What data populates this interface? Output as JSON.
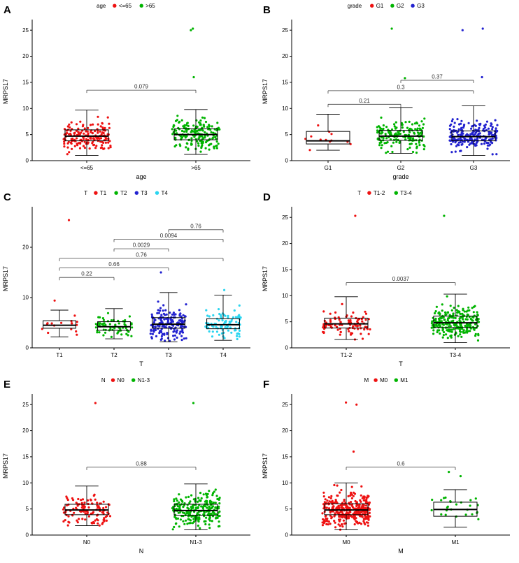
{
  "palette": {
    "red": "#ee1111",
    "green": "#00b400",
    "blue": "#2222d0",
    "cyan": "#2bd5f0",
    "axis": "#000000",
    "bracket": "#444444"
  },
  "ylabel_all": "MRPS17",
  "chart_data": [
    {
      "panel": "A",
      "type": "boxplot-jitter",
      "legend_title": "age",
      "xlabel": "age",
      "ylabel": "MRPS17",
      "ylim": [
        0,
        26.5
      ],
      "yticks": [
        0,
        5,
        10,
        15,
        20,
        25
      ],
      "groups": [
        {
          "label": "<=65",
          "color": "#ee1111",
          "n": 170,
          "whisker_low": 1.0,
          "q1": 3.8,
          "median": 4.7,
          "q3": 5.9,
          "whisker_high": 9.7,
          "outliers": []
        },
        {
          "label": ">65",
          "color": "#00b400",
          "n": 190,
          "whisker_low": 1.2,
          "q1": 4.0,
          "median": 5.0,
          "q3": 6.1,
          "whisker_high": 9.8,
          "outliers": [
            16,
            25,
            25.3
          ]
        }
      ],
      "comparisons": [
        {
          "group1": "<=65",
          "group2": ">65",
          "p": "0.079",
          "y": 13.5
        }
      ]
    },
    {
      "panel": "B",
      "type": "boxplot-jitter",
      "legend_title": "grade",
      "xlabel": "grade",
      "ylabel": "MRPS17",
      "ylim": [
        0,
        26.5
      ],
      "yticks": [
        0,
        5,
        10,
        15,
        20,
        25
      ],
      "groups": [
        {
          "label": "G1",
          "color": "#ee1111",
          "n": 12,
          "whisker_low": 2.0,
          "q1": 3.2,
          "median": 3.8,
          "q3": 5.6,
          "whisker_high": 8.9,
          "outliers": []
        },
        {
          "label": "G2",
          "color": "#00b400",
          "n": 160,
          "whisker_low": 1.4,
          "q1": 3.9,
          "median": 4.7,
          "q3": 5.8,
          "whisker_high": 10.2,
          "outliers": [
            15.8,
            25.3
          ]
        },
        {
          "label": "G3",
          "color": "#2222d0",
          "n": 210,
          "whisker_low": 1.0,
          "q1": 3.8,
          "median": 4.6,
          "q3": 5.7,
          "whisker_high": 10.5,
          "outliers": [
            16,
            25,
            25.3
          ]
        }
      ],
      "comparisons": [
        {
          "group1": "G1",
          "group2": "G2",
          "p": "0.21",
          "y": 10.8
        },
        {
          "group1": "G1",
          "group2": "G3",
          "p": "0.3",
          "y": 13.4
        },
        {
          "group1": "G2",
          "group2": "G3",
          "p": "0.37",
          "y": 15.4
        }
      ]
    },
    {
      "panel": "C",
      "type": "boxplot-jitter",
      "legend_title": "T",
      "xlabel": "T",
      "ylabel": "MRPS17",
      "ylim": [
        0,
        27.5
      ],
      "yticks": [
        0,
        10,
        20
      ],
      "groups": [
        {
          "label": "T1",
          "color": "#ee1111",
          "n": 16,
          "whisker_low": 2.2,
          "q1": 3.9,
          "median": 4.5,
          "q3": 5.4,
          "whisker_high": 7.5,
          "outliers": [
            9.4,
            25.4
          ]
        },
        {
          "label": "T2",
          "color": "#00b400",
          "n": 70,
          "whisker_low": 1.8,
          "q1": 3.5,
          "median": 4.2,
          "q3": 5.2,
          "whisker_high": 7.8,
          "outliers": []
        },
        {
          "label": "T3",
          "color": "#2222d0",
          "n": 165,
          "whisker_low": 1.2,
          "q1": 3.9,
          "median": 4.7,
          "q3": 6.0,
          "whisker_high": 11.0,
          "outliers": [
            15
          ]
        },
        {
          "label": "T4",
          "color": "#2bd5f0",
          "n": 90,
          "whisker_low": 1.5,
          "q1": 3.8,
          "median": 4.6,
          "q3": 5.8,
          "whisker_high": 10.5,
          "outliers": [
            11.5
          ]
        }
      ],
      "comparisons": [
        {
          "group1": "T1",
          "group2": "T2",
          "p": "0.22",
          "y": 14.0
        },
        {
          "group1": "T1",
          "group2": "T3",
          "p": "0.66",
          "y": 15.9
        },
        {
          "group1": "T1",
          "group2": "T4",
          "p": "0.76",
          "y": 17.8
        },
        {
          "group1": "T2",
          "group2": "T3",
          "p": "0.0029",
          "y": 19.7
        },
        {
          "group1": "T2",
          "group2": "T4",
          "p": "0.0094",
          "y": 21.6
        },
        {
          "group1": "T3",
          "group2": "T4",
          "p": "0.76",
          "y": 23.5
        }
      ]
    },
    {
      "panel": "D",
      "type": "boxplot-jitter",
      "legend_title": "T",
      "xlabel": "T",
      "ylabel": "MRPS17",
      "ylim": [
        0,
        26.5
      ],
      "yticks": [
        0,
        5,
        10,
        15,
        20,
        25
      ],
      "groups": [
        {
          "label": "T1-2",
          "color": "#ee1111",
          "n": 95,
          "whisker_low": 1.6,
          "q1": 3.8,
          "median": 4.6,
          "q3": 5.7,
          "whisker_high": 9.8,
          "outliers": [
            25.3
          ]
        },
        {
          "label": "T3-4",
          "color": "#00b400",
          "n": 255,
          "whisker_low": 1.0,
          "q1": 3.9,
          "median": 4.8,
          "q3": 6.1,
          "whisker_high": 10.3,
          "outliers": [
            25.3
          ]
        }
      ],
      "comparisons": [
        {
          "group1": "T1-2",
          "group2": "T3-4",
          "p": "0.0037",
          "y": 12.5
        }
      ]
    },
    {
      "panel": "E",
      "type": "boxplot-jitter",
      "legend_title": "N",
      "xlabel": "N",
      "ylabel": "MRPS17",
      "ylim": [
        0,
        26.5
      ],
      "yticks": [
        0,
        5,
        10,
        15,
        20,
        25
      ],
      "groups": [
        {
          "label": "N0",
          "color": "#ee1111",
          "n": 115,
          "whisker_low": 1.8,
          "q1": 3.9,
          "median": 4.8,
          "q3": 5.9,
          "whisker_high": 9.4,
          "outliers": [
            25.3
          ]
        },
        {
          "label": "N1-3",
          "color": "#00b400",
          "n": 255,
          "whisker_low": 1.0,
          "q1": 3.8,
          "median": 4.7,
          "q3": 5.9,
          "whisker_high": 9.8,
          "outliers": [
            25.3
          ]
        }
      ],
      "comparisons": [
        {
          "group1": "N0",
          "group2": "N1-3",
          "p": "0.88",
          "y": 13.0
        }
      ]
    },
    {
      "panel": "F",
      "type": "boxplot-jitter",
      "legend_title": "M",
      "xlabel": "M",
      "ylabel": "MRPS17",
      "ylim": [
        0,
        26.5
      ],
      "yticks": [
        0,
        5,
        10,
        15,
        20,
        25
      ],
      "groups": [
        {
          "label": "M0",
          "color": "#ee1111",
          "n": 340,
          "whisker_low": 1.0,
          "q1": 3.9,
          "median": 4.8,
          "q3": 6.0,
          "whisker_high": 10.0,
          "outliers": [
            16,
            25,
            25.4
          ]
        },
        {
          "label": "M1",
          "color": "#00b400",
          "n": 26,
          "whisker_low": 1.5,
          "q1": 3.6,
          "median": 4.9,
          "q3": 6.3,
          "whisker_high": 8.7,
          "outliers": [
            11.3,
            12.1
          ]
        }
      ],
      "comparisons": [
        {
          "group1": "M0",
          "group2": "M1",
          "p": "0.6",
          "y": 13.0
        }
      ]
    }
  ]
}
